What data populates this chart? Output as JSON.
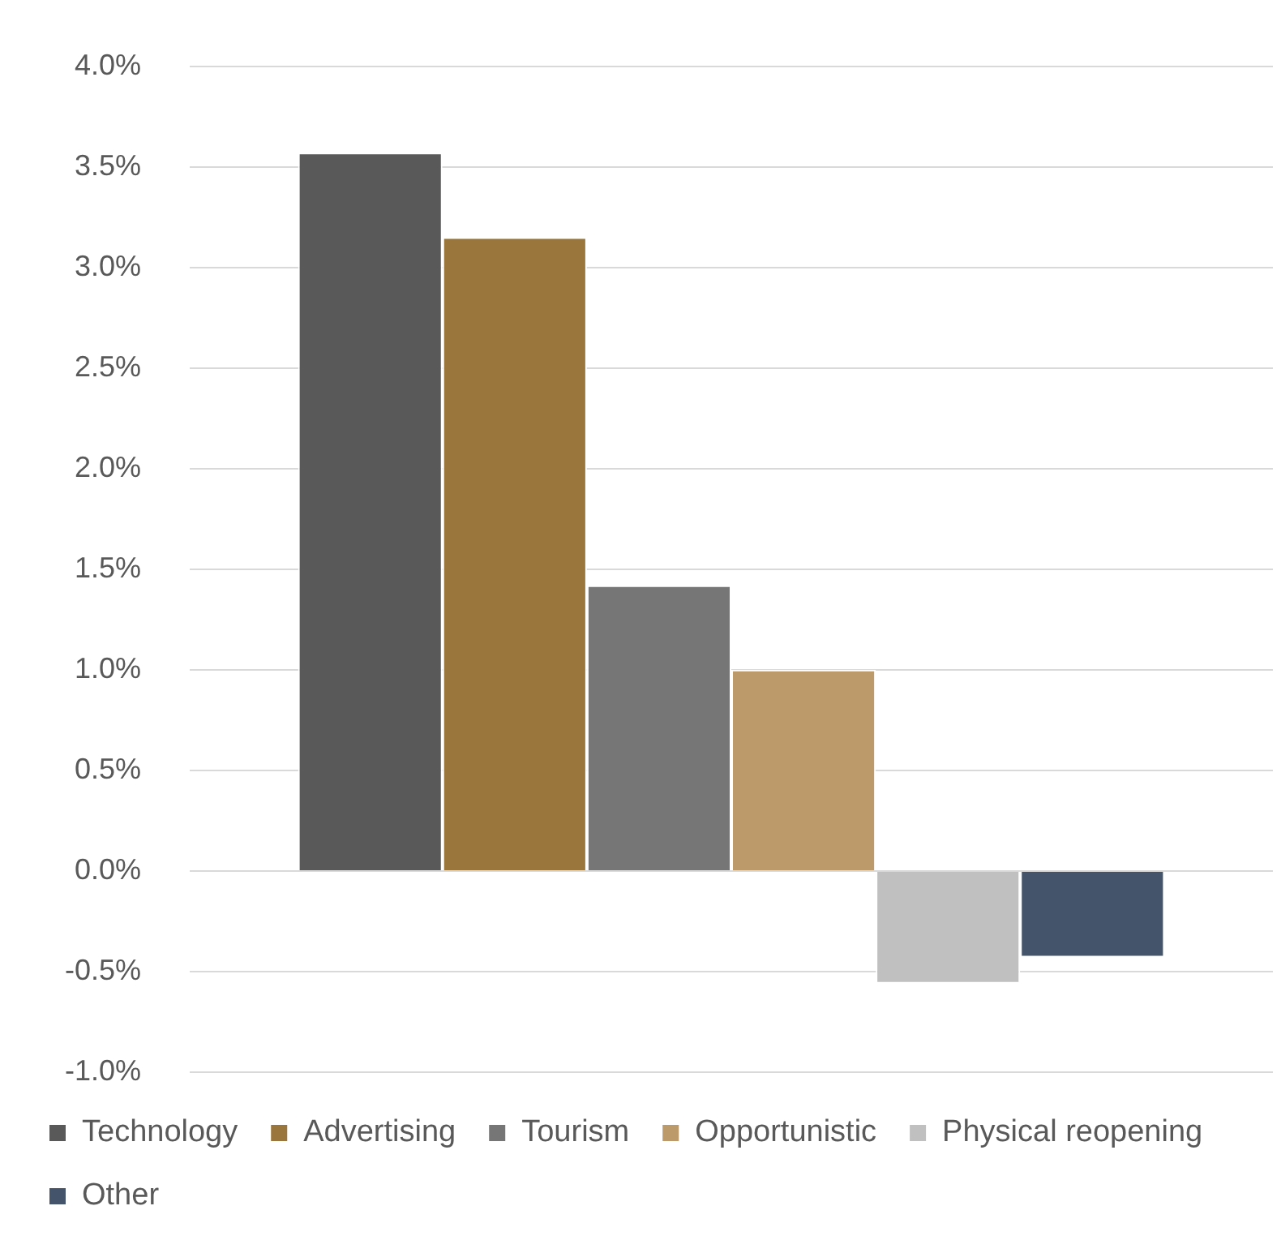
{
  "chart_data": {
    "type": "bar",
    "categories": [
      null
    ],
    "series": [
      {
        "name": "Technology",
        "color": "#595959",
        "values": [
          3.57
        ]
      },
      {
        "name": "Advertising",
        "color": "#9a763c",
        "values": [
          3.15
        ]
      },
      {
        "name": "Tourism",
        "color": "#767676",
        "values": [
          1.42
        ]
      },
      {
        "name": "Opportunistic",
        "color": "#bd9a6a",
        "values": [
          1.0
        ]
      },
      {
        "name": "Physical reopening",
        "color": "#c0c0c0",
        "values": [
          -0.56
        ]
      },
      {
        "name": "Other",
        "color": "#44546a",
        "values": [
          -0.43
        ]
      }
    ],
    "ylim": [
      -1,
      4
    ],
    "yticks": [
      {
        "value": -1,
        "label": "-1.0%"
      },
      {
        "value": -0.5,
        "label": "-0.5%"
      },
      {
        "value": 0,
        "label": "0.0%"
      },
      {
        "value": 0.5,
        "label": "0.5%"
      },
      {
        "value": 1,
        "label": "1.0%"
      },
      {
        "value": 1.5,
        "label": "1.5%"
      },
      {
        "value": 2,
        "label": "2.0%"
      },
      {
        "value": 2.5,
        "label": "2.5%"
      },
      {
        "value": 3,
        "label": "3.0%"
      },
      {
        "value": 3.5,
        "label": "3.5%"
      },
      {
        "value": 4,
        "label": "4.0%"
      }
    ],
    "grid": "y",
    "legend": "bottom"
  }
}
